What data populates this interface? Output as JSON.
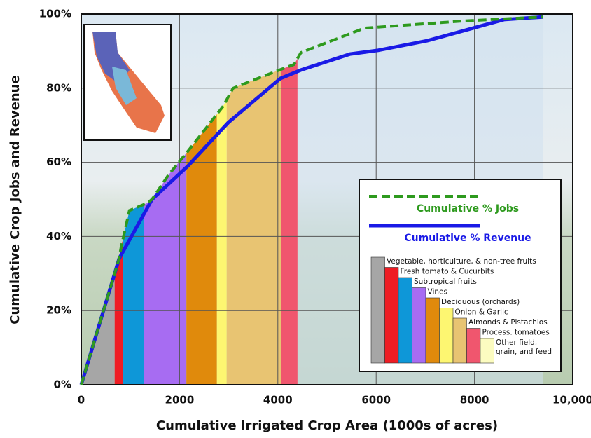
{
  "chart_data": {
    "type": "line",
    "xlabel": "Cumulative Irrigated Crop Area (1000s of acres)",
    "ylabel": "Cumulative Crop Jobs and Revenue",
    "xlim": [
      0,
      10000
    ],
    "ylim": [
      0,
      100
    ],
    "xticks": [
      0,
      2000,
      4000,
      6000,
      8000,
      {
        "value": 10000,
        "label": "10,000"
      }
    ],
    "yticks": [
      {
        "value": 0,
        "label": "0%"
      },
      {
        "value": 20,
        "label": "20%"
      },
      {
        "value": 40,
        "label": "40%"
      },
      {
        "value": 60,
        "label": "60%"
      },
      {
        "value": 80,
        "label": "80%"
      },
      {
        "value": 100,
        "label": "100%"
      }
    ],
    "grid": true,
    "series": [
      {
        "name": "Cumulative % Jobs",
        "color": "#2e9a1e",
        "dash": true,
        "x": [
          0,
          770,
          810,
          980,
          1340,
          1440,
          1770,
          2170,
          2880,
          3090,
          4050,
          4330,
          4470,
          5760,
          7750,
          8320,
          9390
        ],
        "values": [
          0,
          34,
          37,
          47,
          49,
          50,
          56.5,
          63,
          75,
          80,
          85,
          86.4,
          89.6,
          96.2,
          98.1,
          98.5,
          99.2
        ]
      },
      {
        "name": "Cumulative % Revenue",
        "color": "#1a1ae6",
        "dash": false,
        "x": [
          0,
          770,
          1440,
          2170,
          2990,
          4050,
          4470,
          5470,
          6040,
          7040,
          8600,
          9390
        ],
        "values": [
          0,
          34,
          50,
          59,
          70.7,
          82.6,
          84.9,
          89.2,
          90.2,
          92.8,
          98.5,
          99.2
        ]
      }
    ],
    "crop_edges": [
      0,
      680,
      855,
      1280,
      2140,
      2760,
      2960,
      4060,
      4400,
      9390
    ],
    "crops": [
      {
        "name": "Vegetable, horticulture, & non-tree fruits",
        "color": "#a6a6a6"
      },
      {
        "name": "Fresh tomato & Cucurbits",
        "color": "#ee1c24"
      },
      {
        "name": "Subtropical fruits",
        "color": "#0e97d8"
      },
      {
        "name": "Vines",
        "color": "#a76cf2"
      },
      {
        "name": "Deciduous (orchards)",
        "color": "#e08a0c"
      },
      {
        "name": "Onion & Garlic",
        "color": "#fdf671"
      },
      {
        "name": "Almonds & Pistachios",
        "color": "#e8c472"
      },
      {
        "name": "Process. tomatoes",
        "color": "#f0566e"
      },
      {
        "name": "Other field, grain, and feed",
        "color": "#fcfcc0"
      }
    ]
  }
}
